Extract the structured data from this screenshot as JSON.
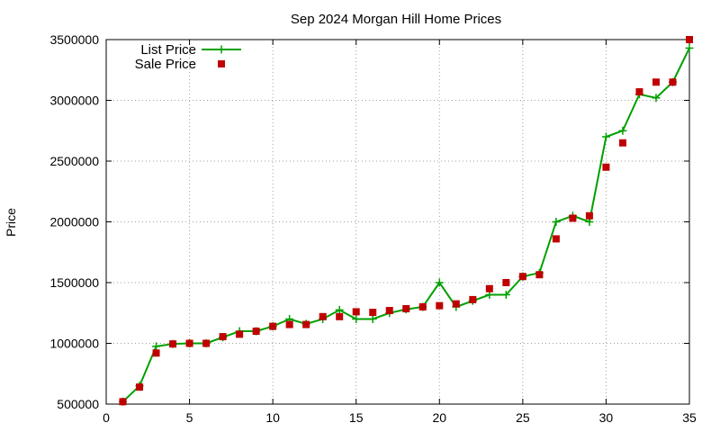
{
  "chart_data": {
    "type": "line",
    "title": "Sep 2024 Morgan Hill Home Prices",
    "xlabel": "",
    "ylabel": "Price",
    "xlim": [
      0,
      35
    ],
    "ylim": [
      500000,
      3500000
    ],
    "grid": true,
    "legend_position": "top-left",
    "x_ticks": [
      "0",
      "5",
      "10",
      "15",
      "20",
      "25",
      "30",
      "35"
    ],
    "y_ticks": [
      "500000",
      "1000000",
      "1500000",
      "2000000",
      "2500000",
      "3000000",
      "3500000"
    ],
    "x": [
      1,
      2,
      3,
      4,
      5,
      6,
      7,
      8,
      9,
      10,
      11,
      12,
      13,
      14,
      15,
      16,
      17,
      18,
      19,
      20,
      21,
      22,
      23,
      24,
      25,
      26,
      27,
      28,
      29,
      30,
      31,
      32,
      33,
      34,
      35
    ],
    "series": [
      {
        "name": "List Price",
        "color": "#00a000",
        "marker": "plus",
        "line": true,
        "values": [
          520000,
          650000,
          975000,
          995000,
          1000000,
          1000000,
          1050000,
          1100000,
          1100000,
          1140000,
          1200000,
          1160000,
          1200000,
          1275000,
          1200000,
          1200000,
          1250000,
          1280000,
          1300000,
          1500000,
          1300000,
          1350000,
          1400000,
          1400000,
          1550000,
          1580000,
          2000000,
          2050000,
          2000000,
          2700000,
          2750000,
          3050000,
          3020000,
          3150000,
          3430000
        ]
      },
      {
        "name": "Sale Price",
        "color": "#c00000",
        "marker": "square",
        "line": false,
        "values": [
          520000,
          640000,
          920000,
          995000,
          1000000,
          1000000,
          1055000,
          1075000,
          1100000,
          1140000,
          1155000,
          1155000,
          1220000,
          1220000,
          1260000,
          1255000,
          1270000,
          1285000,
          1300000,
          1310000,
          1325000,
          1360000,
          1450000,
          1500000,
          1550000,
          1565000,
          1860000,
          2030000,
          2050000,
          2450000,
          2650000,
          3070000,
          3150000,
          3150000,
          3500000
        ]
      }
    ]
  }
}
